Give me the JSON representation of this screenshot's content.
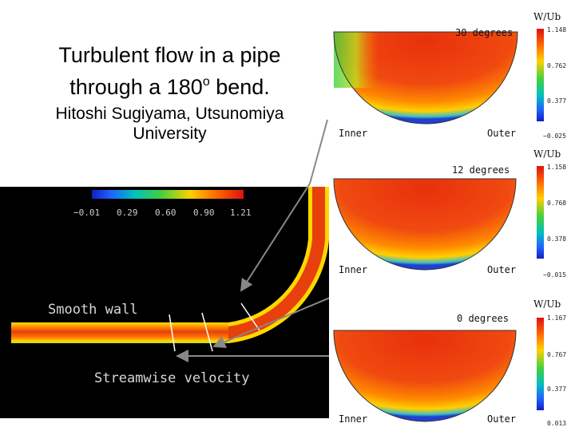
{
  "title": {
    "line1": "Turbulent flow in a pipe",
    "line2_a": "through a 180",
    "line2_sup": "o",
    "line2_b": " bend."
  },
  "author": {
    "line1": "Hitoshi Sugiyama, Utsunomiya",
    "line2": "University"
  },
  "sections": [
    {
      "angle_label": "30  degrees",
      "quantity": "W/Ub",
      "inner": "Inner",
      "outer": "Outer",
      "ticks": [
        "1.148",
        "0.762",
        "0.377",
        "−0.025"
      ]
    },
    {
      "angle_label": "12  degrees",
      "quantity": "W/Ub",
      "inner": "Inner",
      "outer": "Outer",
      "ticks": [
        "1.158",
        "0.768",
        "0.378",
        "−0.015"
      ]
    },
    {
      "angle_label": "0  degrees",
      "quantity": "W/Ub",
      "inner": "Inner",
      "outer": "Outer",
      "ticks": [
        "1.167",
        "0.767",
        "0.377",
        "0.013"
      ]
    }
  ],
  "pipe_view": {
    "colorbar_ticks": [
      "−0.01",
      "0.29",
      "0.60",
      "0.90",
      "1.21"
    ],
    "label_wall": "Smooth wall",
    "label_velocity": "Streamwise velocity"
  },
  "colors": {
    "core": "#e84a10",
    "wall": "#ffd400",
    "arrow": "#888888",
    "background": "#000000"
  }
}
